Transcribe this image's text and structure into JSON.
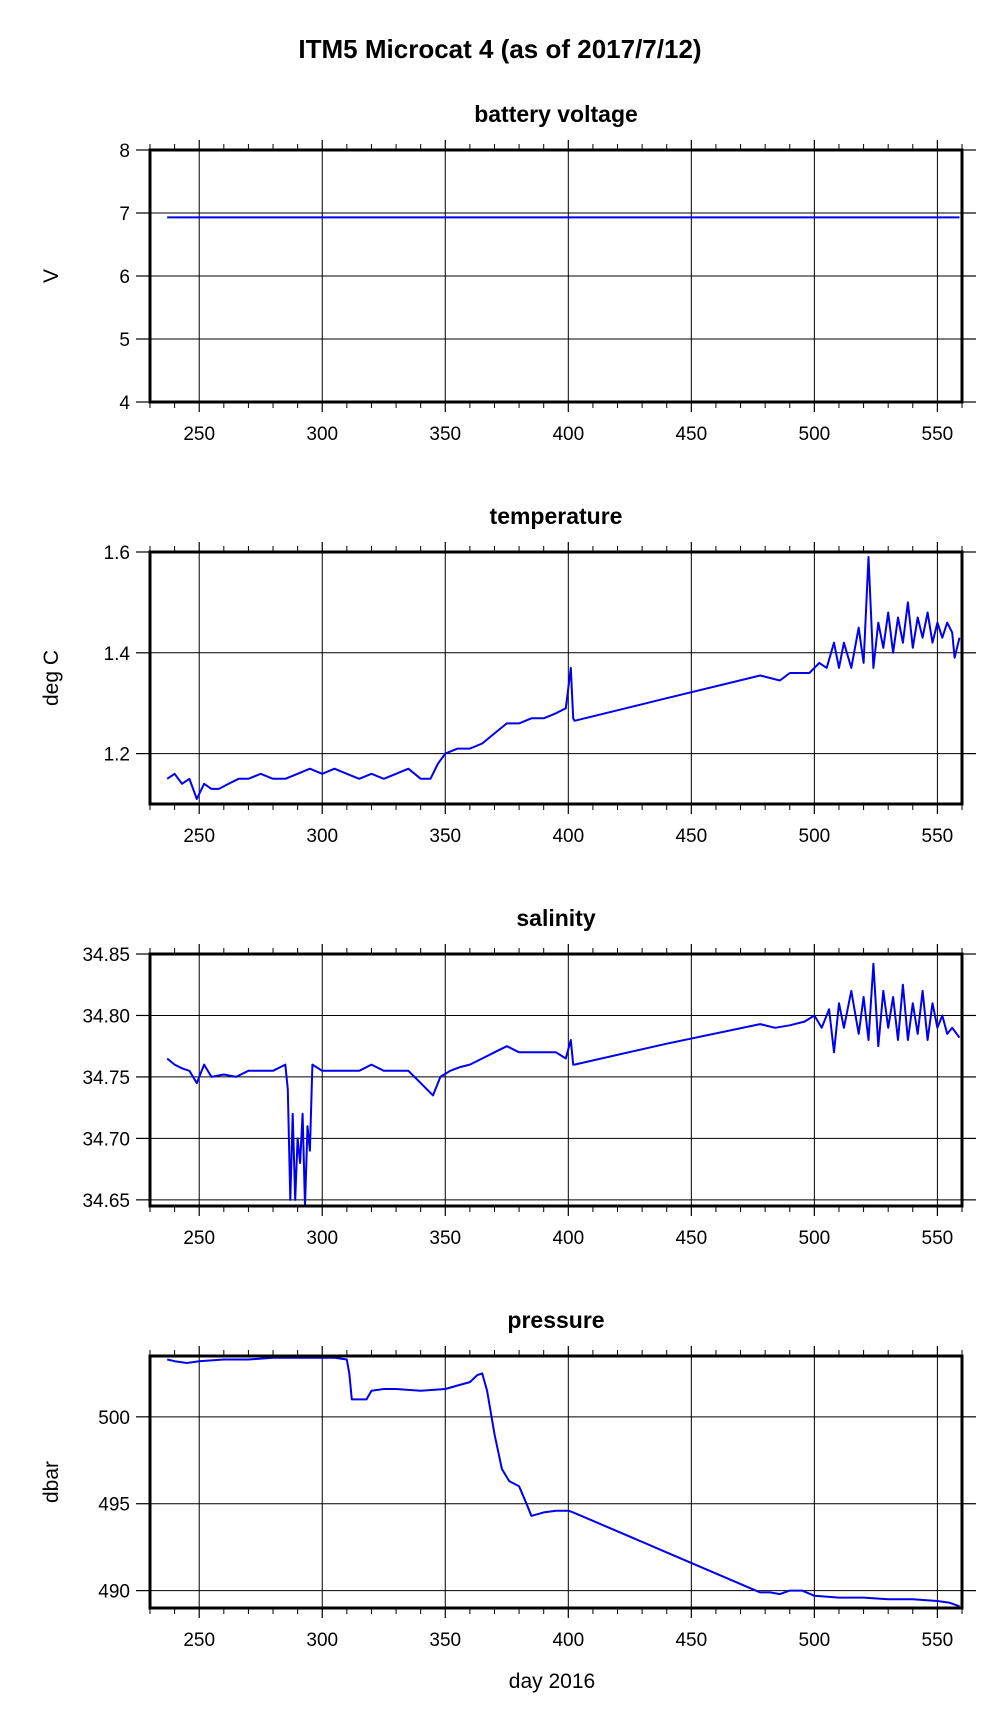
{
  "figure": {
    "title": "ITM5 Microcat 4 (as of 2017/7/12)",
    "xlabel": "day 2016",
    "line_color": "#0000ee"
  },
  "chart_data": [
    {
      "type": "line",
      "title": "battery voltage",
      "xlabel": "day 2016",
      "ylabel": "V",
      "xlim": [
        230,
        560
      ],
      "ylim": [
        4,
        8
      ],
      "xticks": [
        250,
        300,
        350,
        400,
        450,
        500,
        550
      ],
      "xtick_labels": [
        "250",
        "300",
        "350",
        "400",
        "450",
        "500",
        "550"
      ],
      "yticks": [
        4,
        5,
        6,
        7,
        8
      ],
      "ytick_labels": [
        "4",
        "5",
        "6",
        "7",
        "8"
      ],
      "grid": true,
      "series": [
        {
          "x": [
            237,
            260,
            290,
            320,
            350,
            380,
            410,
            440,
            470,
            500,
            530,
            559
          ],
          "y": [
            6.93,
            6.93,
            6.93,
            6.93,
            6.93,
            6.93,
            6.93,
            6.93,
            6.93,
            6.93,
            6.93,
            6.93
          ]
        }
      ]
    },
    {
      "type": "line",
      "title": "temperature",
      "xlabel": "day 2016",
      "ylabel": "deg C",
      "xlim": [
        230,
        560
      ],
      "ylim": [
        1.1,
        1.6
      ],
      "xticks": [
        250,
        300,
        350,
        400,
        450,
        500,
        550
      ],
      "xtick_labels": [
        "250",
        "300",
        "350",
        "400",
        "450",
        "500",
        "550"
      ],
      "yticks": [
        1.2,
        1.4,
        1.6
      ],
      "ytick_labels": [
        "1.2",
        "1.4",
        "1.6"
      ],
      "grid": true,
      "series": [
        {
          "x": [
            237,
            240,
            243,
            246,
            249,
            252,
            255,
            258,
            262,
            266,
            270,
            275,
            280,
            285,
            290,
            295,
            300,
            305,
            310,
            315,
            320,
            325,
            330,
            335,
            340,
            344,
            347,
            350,
            355,
            360,
            365,
            370,
            375,
            380,
            385,
            390,
            395,
            399,
            401,
            402,
            402.5,
            440,
            478,
            482,
            486,
            490,
            494,
            498,
            502,
            505,
            508,
            510,
            512,
            515,
            518,
            520,
            522,
            524,
            526,
            528,
            530,
            532,
            534,
            536,
            538,
            540,
            542,
            544,
            546,
            548,
            550,
            552,
            554,
            556,
            557,
            559
          ],
          "y": [
            1.15,
            1.16,
            1.14,
            1.15,
            1.11,
            1.14,
            1.13,
            1.13,
            1.14,
            1.15,
            1.15,
            1.16,
            1.15,
            1.15,
            1.16,
            1.17,
            1.16,
            1.17,
            1.16,
            1.15,
            1.16,
            1.15,
            1.16,
            1.17,
            1.15,
            1.15,
            1.18,
            1.2,
            1.21,
            1.21,
            1.22,
            1.24,
            1.26,
            1.26,
            1.27,
            1.27,
            1.28,
            1.29,
            1.37,
            1.27,
            1.265,
            1.31,
            1.355,
            1.35,
            1.345,
            1.36,
            1.36,
            1.36,
            1.38,
            1.37,
            1.42,
            1.37,
            1.42,
            1.37,
            1.45,
            1.38,
            1.59,
            1.37,
            1.46,
            1.41,
            1.48,
            1.4,
            1.47,
            1.42,
            1.5,
            1.41,
            1.47,
            1.43,
            1.48,
            1.42,
            1.46,
            1.43,
            1.46,
            1.44,
            1.39,
            1.43
          ]
        }
      ]
    },
    {
      "type": "line",
      "title": "salinity",
      "xlabel": "day 2016",
      "ylabel": "",
      "xlim": [
        230,
        560
      ],
      "ylim": [
        34.645,
        34.85
      ],
      "xticks": [
        250,
        300,
        350,
        400,
        450,
        500,
        550
      ],
      "xtick_labels": [
        "250",
        "300",
        "350",
        "400",
        "450",
        "500",
        "550"
      ],
      "yticks": [
        34.65,
        34.7,
        34.75,
        34.8,
        34.85
      ],
      "ytick_labels": [
        "34.65",
        "34.70",
        "34.75",
        "34.80",
        "34.85"
      ],
      "grid": true,
      "series": [
        {
          "x": [
            237,
            240,
            243,
            246,
            249,
            252,
            255,
            260,
            265,
            270,
            275,
            280,
            285,
            286,
            287,
            288,
            289,
            290,
            291,
            292,
            293,
            294,
            295,
            296,
            300,
            305,
            310,
            315,
            320,
            325,
            330,
            335,
            340,
            345,
            348,
            352,
            356,
            360,
            365,
            370,
            375,
            380,
            385,
            390,
            395,
            399,
            401,
            402,
            402.5,
            440,
            478,
            484,
            490,
            496,
            500,
            503,
            506,
            508,
            510,
            512,
            515,
            518,
            520,
            522,
            524,
            526,
            528,
            530,
            532,
            534,
            536,
            538,
            540,
            542,
            544,
            546,
            548,
            550,
            552,
            554,
            556,
            559
          ],
          "y": [
            34.765,
            34.76,
            34.757,
            34.755,
            34.745,
            34.76,
            34.75,
            34.752,
            34.75,
            34.755,
            34.755,
            34.755,
            34.76,
            34.74,
            34.65,
            34.72,
            34.65,
            34.7,
            34.68,
            34.72,
            34.645,
            34.71,
            34.69,
            34.76,
            34.755,
            34.755,
            34.755,
            34.755,
            34.76,
            34.755,
            34.755,
            34.755,
            34.745,
            34.735,
            34.75,
            34.755,
            34.758,
            34.76,
            34.765,
            34.77,
            34.775,
            34.77,
            34.77,
            34.77,
            34.77,
            34.765,
            34.78,
            34.76,
            34.76,
            34.777,
            34.793,
            34.79,
            34.792,
            34.795,
            34.8,
            34.79,
            34.805,
            34.77,
            34.81,
            34.79,
            34.82,
            34.785,
            34.815,
            34.78,
            34.842,
            34.775,
            34.82,
            34.79,
            34.815,
            34.78,
            34.825,
            34.78,
            34.81,
            34.785,
            34.82,
            34.78,
            34.81,
            34.79,
            34.8,
            34.785,
            34.79,
            34.782
          ]
        }
      ]
    },
    {
      "type": "line",
      "title": "pressure",
      "xlabel": "day 2016",
      "ylabel": "dbar",
      "xlim": [
        230,
        560
      ],
      "ylim": [
        489,
        503.5
      ],
      "xticks": [
        250,
        300,
        350,
        400,
        450,
        500,
        550
      ],
      "xtick_labels": [
        "250",
        "300",
        "350",
        "400",
        "450",
        "500",
        "550"
      ],
      "yticks": [
        490,
        495,
        500
      ],
      "ytick_labels": [
        "490",
        "495",
        "500"
      ],
      "grid": true,
      "series": [
        {
          "x": [
            237,
            240,
            245,
            250,
            260,
            270,
            280,
            290,
            300,
            305,
            310,
            311,
            312,
            313,
            318,
            320,
            325,
            330,
            340,
            350,
            355,
            360,
            363,
            365,
            367,
            370,
            373,
            376,
            380,
            383,
            385,
            390,
            395,
            400,
            402,
            440,
            478,
            482,
            486,
            490,
            495,
            500,
            510,
            520,
            530,
            540,
            550,
            555,
            559
          ],
          "y": [
            503.3,
            503.2,
            503.1,
            503.2,
            503.3,
            503.3,
            503.4,
            503.4,
            503.4,
            503.4,
            503.3,
            502.5,
            501.0,
            501.0,
            501.0,
            501.5,
            501.6,
            501.6,
            501.5,
            501.6,
            501.8,
            502.0,
            502.4,
            502.5,
            501.5,
            499.0,
            497.0,
            496.3,
            496.0,
            495.0,
            494.3,
            494.5,
            494.6,
            494.6,
            494.5,
            492.2,
            489.9,
            489.9,
            489.8,
            490.0,
            490.0,
            489.7,
            489.6,
            489.6,
            489.5,
            489.5,
            489.4,
            489.3,
            489.1
          ]
        }
      ]
    }
  ]
}
